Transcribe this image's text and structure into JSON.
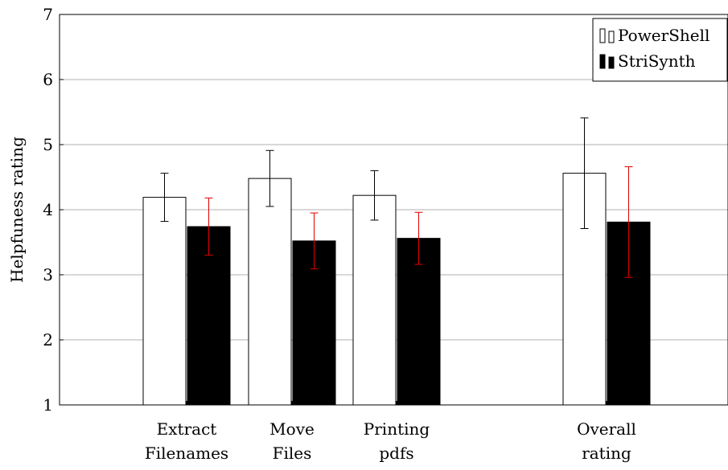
{
  "chart_data": {
    "type": "bar",
    "title": "",
    "ylabel": "Helpfuness rating",
    "xlabel": "",
    "ylim": [
      1,
      7
    ],
    "yticks": [
      "1",
      "2",
      "3",
      "4",
      "5",
      "6",
      "7"
    ],
    "grid": "horizontal",
    "legend_position": "top-right",
    "categories": [
      [
        "Extract",
        "Filenames"
      ],
      [
        "Move",
        "Files"
      ],
      [
        "Printing",
        "pdfs"
      ],
      [
        "Overall",
        "rating"
      ]
    ],
    "series": [
      {
        "name": "PowerShell",
        "fill": "#ffffff",
        "stroke": "#000000",
        "error_color": "#000000",
        "values": [
          4.19,
          4.48,
          4.22,
          4.56
        ],
        "errors": [
          0.37,
          0.43,
          0.38,
          0.85
        ]
      },
      {
        "name": "StriSynth",
        "fill": "#000000",
        "stroke": "#000000",
        "error_color": "#e00000",
        "values": [
          3.74,
          3.52,
          3.56,
          3.81
        ],
        "errors": [
          0.44,
          0.43,
          0.4,
          0.85
        ]
      }
    ]
  }
}
